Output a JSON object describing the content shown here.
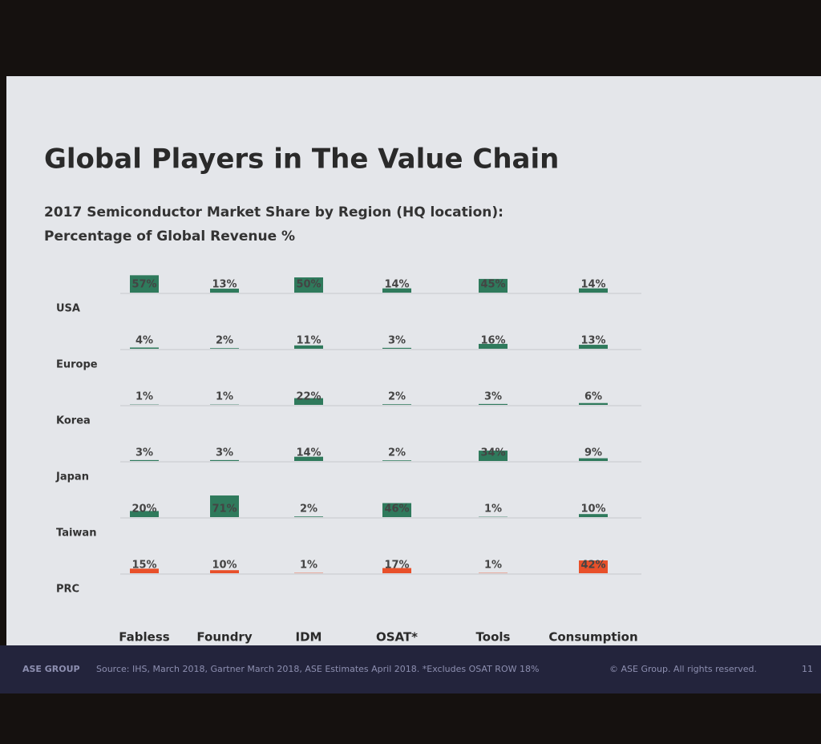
{
  "chart_data": {
    "type": "bar",
    "title": "Global Players in The Value Chain",
    "subtitle": "2017 Semiconductor Market Share by Region (HQ location):",
    "y_label": "Percentage of Global Revenue %",
    "categories": [
      "Fabless",
      "Foundry",
      "IDM",
      "OSAT*",
      "Tools",
      "Consumption"
    ],
    "series": [
      {
        "name": "USA",
        "color": "#2f7a5c",
        "values": [
          57,
          13,
          50,
          14,
          45,
          14
        ],
        "value_labels": [
          "57%",
          "13%",
          "50%",
          "14%",
          "45%",
          "14%"
        ]
      },
      {
        "name": "Europe",
        "color": "#2f7a5c",
        "values": [
          4,
          2,
          11,
          3,
          16,
          13
        ],
        "value_labels": [
          "4%",
          "2%",
          "11%",
          "3%",
          "16%",
          "13%"
        ]
      },
      {
        "name": "Korea",
        "color": "#2f7a5c",
        "values": [
          1,
          1,
          22,
          2,
          3,
          6
        ],
        "value_labels": [
          "1%",
          "1%",
          "22%",
          "2%",
          "3%",
          "6%"
        ]
      },
      {
        "name": "Japan",
        "color": "#2f7a5c",
        "values": [
          3,
          3,
          14,
          2,
          34,
          9
        ],
        "value_labels": [
          "3%",
          "3%",
          "14%",
          "2%",
          "34%",
          "9%"
        ]
      },
      {
        "name": "Taiwan",
        "color": "#2f7a5c",
        "values": [
          20,
          71,
          2,
          46,
          1,
          10
        ],
        "value_labels": [
          "20%",
          "71%",
          "2%",
          "46%",
          "1%",
          "10%"
        ]
      },
      {
        "name": "PRC",
        "color": "#e8502a",
        "values": [
          15,
          10,
          1,
          17,
          1,
          42
        ],
        "value_labels": [
          "15%",
          "10%",
          "1%",
          "17%",
          "1%",
          "42%"
        ]
      }
    ]
  },
  "footer": {
    "logo": "ASE GROUP",
    "source": "Source: IHS, March 2018, Gartner March 2018, ASE Estimates April 2018. *Excludes OSAT ROW 18%",
    "copyright": "© ASE Group. All rights reserved.",
    "page": "11"
  }
}
